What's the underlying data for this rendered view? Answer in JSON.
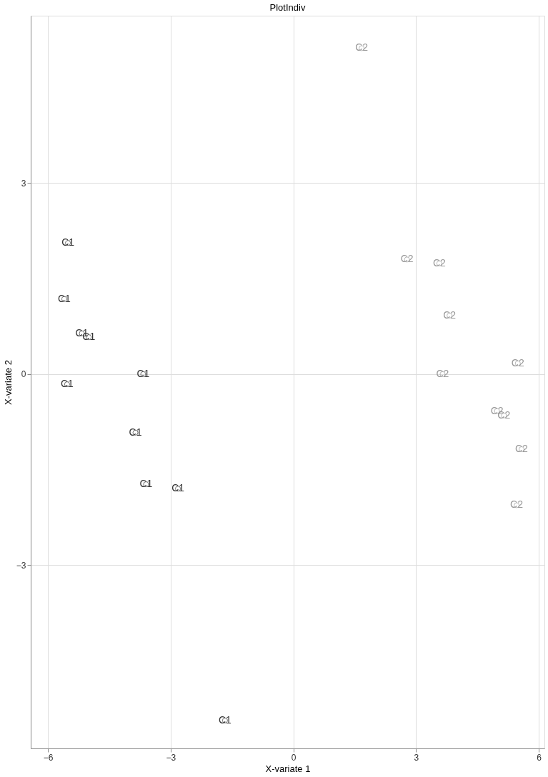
{
  "chart_data": {
    "type": "scatter",
    "title": "PlotIndiv",
    "xlabel": "X-variate 1",
    "ylabel": "X-variate 2",
    "xlim": [
      -6.42,
      6.14
    ],
    "ylim": [
      -5.88,
      5.63
    ],
    "xticks": [
      -6,
      -3,
      0,
      3,
      6
    ],
    "yticks": [
      -3,
      0,
      3
    ],
    "grid": true,
    "legend": false,
    "marker": "circle",
    "series": [
      {
        "name": "C1",
        "color": "#333333",
        "x": [
          -5.51,
          -5.6,
          -5.17,
          -5.0,
          -3.67,
          -5.53,
          -3.86,
          -3.6,
          -2.82,
          -1.67
        ],
        "values": [
          2.06,
          1.18,
          0.64,
          0.58,
          0.0,
          -0.16,
          -0.92,
          -1.73,
          -1.8,
          -5.44
        ]
      },
      {
        "name": "C2",
        "color": "#999999",
        "x": [
          1.67,
          2.78,
          3.57,
          3.82,
          3.65,
          5.49,
          4.98,
          5.15,
          5.58,
          5.46
        ],
        "values": [
          5.12,
          1.8,
          1.74,
          0.92,
          0.0,
          0.17,
          -0.58,
          -0.65,
          -1.18,
          -2.06
        ]
      }
    ]
  }
}
